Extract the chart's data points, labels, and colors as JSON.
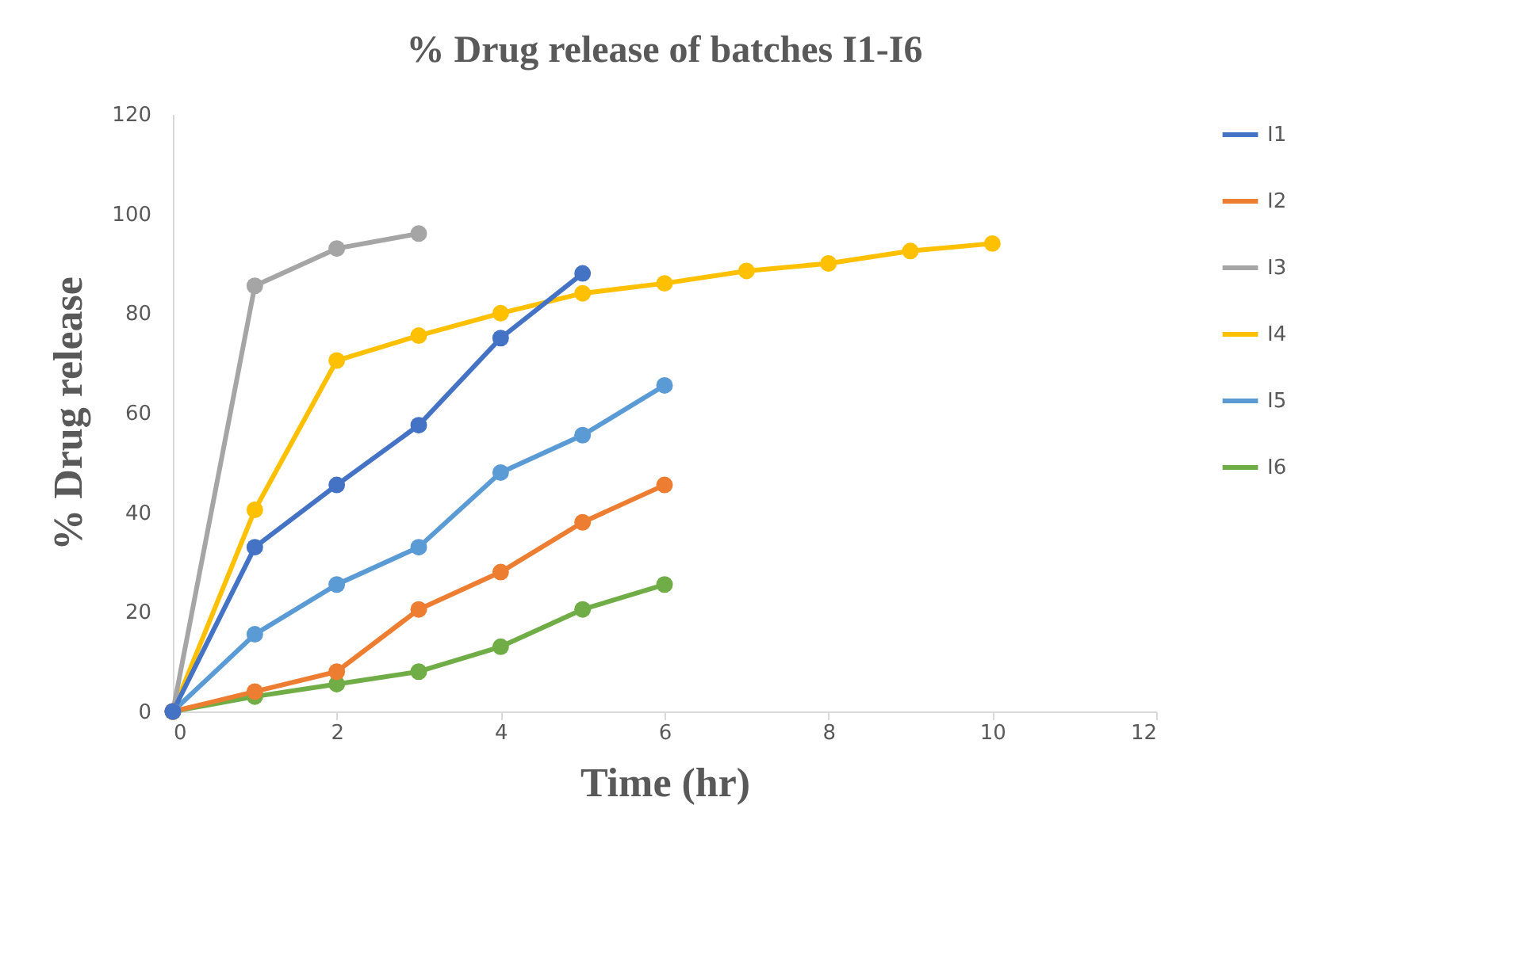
{
  "chart_data": {
    "type": "line",
    "title": "% Drug release of batches I1-I6",
    "xlabel": "Time (hr)",
    "ylabel": "% Drug release",
    "xlim": [
      0,
      12
    ],
    "xticks": [
      0,
      2,
      4,
      6,
      8,
      10,
      12
    ],
    "ylim": [
      0,
      120
    ],
    "yticks": [
      0,
      20,
      40,
      60,
      80,
      100,
      120
    ],
    "grid": false,
    "legend": "right",
    "marker": "circle",
    "line_style": "solid",
    "series": [
      {
        "name": "I1",
        "color": "#4472c4",
        "x": [
          0,
          1,
          2,
          3,
          4,
          5
        ],
        "values": [
          0,
          33,
          45.5,
          57.5,
          75,
          88
        ]
      },
      {
        "name": "I2",
        "color": "#ed7d31",
        "x": [
          0,
          1,
          2,
          3,
          4,
          5,
          6
        ],
        "values": [
          0,
          4,
          8,
          20.5,
          28,
          38,
          45.5
        ]
      },
      {
        "name": "I3",
        "color": "#a5a5a5",
        "x": [
          0,
          1,
          2,
          3
        ],
        "values": [
          0,
          85.5,
          93,
          96
        ]
      },
      {
        "name": "I4",
        "color": "#ffc000",
        "x": [
          0,
          1,
          2,
          3,
          4,
          5,
          6,
          7,
          8,
          9,
          10
        ],
        "values": [
          0,
          40.5,
          70.5,
          75.5,
          80,
          84,
          86,
          88.5,
          90,
          92.5,
          94
        ]
      },
      {
        "name": "I5",
        "color": "#5b9bd5",
        "x": [
          0,
          1,
          2,
          3,
          4,
          5,
          6
        ],
        "values": [
          0,
          15.5,
          25.5,
          33,
          48,
          55.5,
          65.5
        ]
      },
      {
        "name": "I6",
        "color": "#70ad47",
        "x": [
          0,
          1,
          2,
          3,
          4,
          5,
          6
        ],
        "values": [
          0,
          3,
          5.5,
          8,
          13,
          20.5,
          25.5
        ]
      }
    ]
  }
}
